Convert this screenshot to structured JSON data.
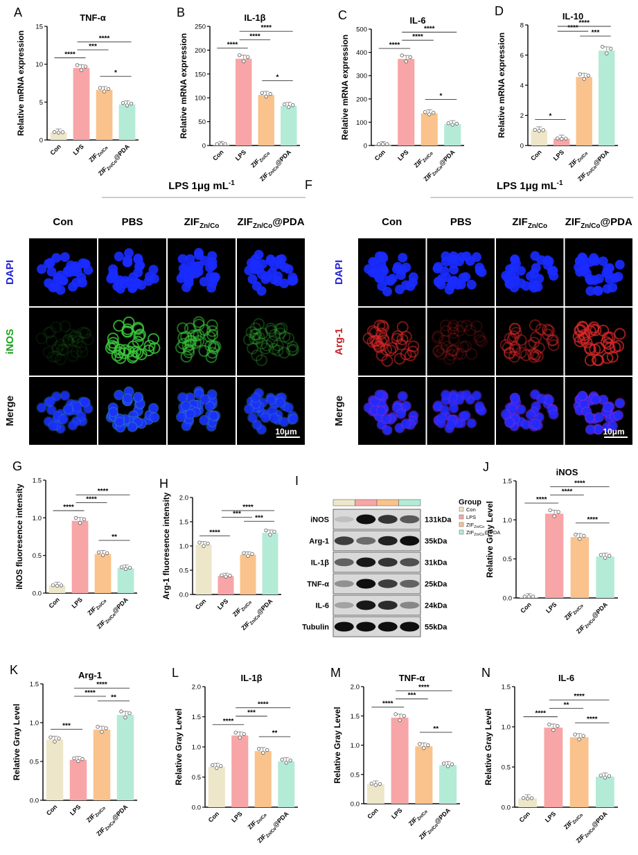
{
  "categories": [
    "Con",
    "LPS",
    "ZIF",
    "ZIF@PDA"
  ],
  "sub_label": "Zn/Co",
  "pda_suffix": "@PDA",
  "colors": {
    "con": "#EDE6C8",
    "lps": "#F7A5A6",
    "zif": "#FAC28C",
    "pda": "#B4EBD6"
  },
  "panels": {
    "A": {
      "letter": "A",
      "title": "TNF-α",
      "ylabel": "Relative mRNA expression",
      "ylim": [
        0,
        15
      ],
      "ticks": [
        0,
        5,
        10,
        15
      ]
    },
    "B": {
      "letter": "B",
      "title": "IL-1β",
      "ylabel": "Relative mRNA expression",
      "ylim": [
        0,
        250
      ],
      "ticks": [
        0,
        50,
        100,
        150,
        200,
        250
      ]
    },
    "C": {
      "letter": "C",
      "title": "IL-6",
      "ylabel": "Relative mRNA expression",
      "ylim": [
        0,
        500
      ],
      "ticks": [
        0,
        100,
        200,
        300,
        400,
        500
      ]
    },
    "D": {
      "letter": "D",
      "title": "IL-10",
      "ylabel": "Relative mRNA expression",
      "ylim": [
        0,
        8
      ],
      "ticks": [
        0,
        2,
        4,
        6,
        8
      ]
    },
    "G": {
      "letter": "G",
      "title": "",
      "ylabel": "iNOS fluoresence intensity",
      "ylim": [
        0,
        1.5
      ],
      "ticks": [
        "0.0",
        "0.5",
        "1.0",
        "1.5"
      ]
    },
    "H": {
      "letter": "H",
      "title": "",
      "ylabel": "Arg-1 fluoresence intensity",
      "ylim": [
        0,
        2.0
      ],
      "ticks": [
        "0.0",
        "0.5",
        "1.0",
        "1.5",
        "2.0"
      ]
    },
    "J": {
      "letter": "J",
      "title": "iNOS",
      "ylabel": "Relative Gray Level",
      "ylim": [
        0,
        1.5
      ],
      "ticks": [
        "0.0",
        "0.5",
        "1.0",
        "1.5"
      ]
    },
    "K": {
      "letter": "K",
      "title": "Arg-1",
      "ylabel": "Relative Gray Level",
      "ylim": [
        0,
        1.5
      ],
      "ticks": [
        "0.0",
        "0.5",
        "1.0",
        "1.5"
      ]
    },
    "L": {
      "letter": "L",
      "title": "IL-1β",
      "ylabel": "Relative Gray Level",
      "ylim": [
        0,
        2.0
      ],
      "ticks": [
        "0.0",
        "0.5",
        "1.0",
        "1.5",
        "2.0"
      ]
    },
    "M": {
      "letter": "M",
      "title": "TNF-α",
      "ylabel": "Relative Gray Level",
      "ylim": [
        0,
        2.0
      ],
      "ticks": [
        "0.0",
        "0.5",
        "1.0",
        "1.5",
        "2.0"
      ]
    },
    "N": {
      "letter": "N",
      "title": "IL-6",
      "ylabel": "Relative Gray Level",
      "ylim": [
        0,
        1.5
      ],
      "ticks": [
        "0.0",
        "0.5",
        "1.0",
        "1.5"
      ]
    }
  },
  "chart_data": [
    {
      "panel": "A",
      "type": "bar",
      "categories": [
        "Con",
        "LPS",
        "ZIF Zn/Co",
        "ZIF Zn/Co@PDA"
      ],
      "values": [
        1.0,
        9.5,
        6.6,
        4.7
      ],
      "ylim": [
        0,
        15
      ],
      "sig": [
        {
          "from": 0,
          "to": 1,
          "label": "****"
        },
        {
          "from": 1,
          "to": 2,
          "label": "***"
        },
        {
          "from": 1,
          "to": 3,
          "label": "****"
        },
        {
          "from": 2,
          "to": 3,
          "label": "*"
        }
      ]
    },
    {
      "panel": "B",
      "type": "bar",
      "categories": [
        "Con",
        "LPS",
        "ZIF Zn/Co",
        "ZIF Zn/Co@PDA"
      ],
      "values": [
        1,
        182,
        106,
        83
      ],
      "ylim": [
        0,
        250
      ],
      "sig": [
        {
          "from": 0,
          "to": 1,
          "label": "****"
        },
        {
          "from": 1,
          "to": 2,
          "label": "****"
        },
        {
          "from": 1,
          "to": 3,
          "label": "****"
        },
        {
          "from": 2,
          "to": 3,
          "label": "*"
        }
      ]
    },
    {
      "panel": "C",
      "type": "bar",
      "categories": [
        "Con",
        "LPS",
        "ZIF Zn/Co",
        "ZIF Zn/Co@PDA"
      ],
      "values": [
        1,
        372,
        138,
        92
      ],
      "ylim": [
        0,
        500
      ],
      "sig": [
        {
          "from": 0,
          "to": 1,
          "label": "****"
        },
        {
          "from": 1,
          "to": 2,
          "label": "****"
        },
        {
          "from": 1,
          "to": 3,
          "label": "****"
        },
        {
          "from": 2,
          "to": 3,
          "label": "*"
        }
      ]
    },
    {
      "panel": "D",
      "type": "bar",
      "categories": [
        "Con",
        "LPS",
        "ZIF Zn/Co",
        "ZIF Zn/Co@PDA"
      ],
      "values": [
        1.0,
        0.45,
        4.55,
        6.3
      ],
      "ylim": [
        0,
        8
      ],
      "sig": [
        {
          "from": 0,
          "to": 1,
          "label": "*"
        },
        {
          "from": 1,
          "to": 2,
          "label": "****"
        },
        {
          "from": 1,
          "to": 3,
          "label": "****"
        },
        {
          "from": 2,
          "to": 3,
          "label": "***"
        }
      ]
    },
    {
      "panel": "G",
      "type": "bar",
      "categories": [
        "Con",
        "LPS",
        "ZIF Zn/Co",
        "ZIF Zn/Co@PDA"
      ],
      "values": [
        0.1,
        0.96,
        0.52,
        0.33
      ],
      "ylim": [
        0,
        1.5
      ],
      "sig": [
        {
          "from": 0,
          "to": 1,
          "label": "****"
        },
        {
          "from": 1,
          "to": 2,
          "label": "****"
        },
        {
          "from": 1,
          "to": 3,
          "label": "****"
        },
        {
          "from": 2,
          "to": 3,
          "label": "**"
        }
      ]
    },
    {
      "panel": "H",
      "type": "bar",
      "categories": [
        "Con",
        "LPS",
        "ZIF Zn/Co",
        "ZIF Zn/Co@PDA"
      ],
      "values": [
        1.03,
        0.38,
        0.82,
        1.27
      ],
      "ylim": [
        0,
        2.0
      ],
      "sig": [
        {
          "from": 0,
          "to": 1,
          "label": "****"
        },
        {
          "from": 1,
          "to": 2,
          "label": "***"
        },
        {
          "from": 1,
          "to": 3,
          "label": "****"
        },
        {
          "from": 2,
          "to": 3,
          "label": "***"
        }
      ]
    },
    {
      "panel": "J",
      "type": "bar",
      "categories": [
        "Con",
        "LPS",
        "ZIF Zn/Co",
        "ZIF Zn/Co@PDA"
      ],
      "values": [
        0.01,
        1.08,
        0.78,
        0.53
      ],
      "ylim": [
        0,
        1.5
      ],
      "sig": [
        {
          "from": 0,
          "to": 1,
          "label": "****"
        },
        {
          "from": 1,
          "to": 2,
          "label": "****"
        },
        {
          "from": 1,
          "to": 3,
          "label": "****"
        },
        {
          "from": 2,
          "to": 3,
          "label": "****"
        }
      ]
    },
    {
      "panel": "K",
      "type": "bar",
      "categories": [
        "Con",
        "LPS",
        "ZIF Zn/Co",
        "ZIF Zn/Co@PDA"
      ],
      "values": [
        0.78,
        0.52,
        0.91,
        1.1
      ],
      "ylim": [
        0,
        1.5
      ],
      "sig": [
        {
          "from": 0,
          "to": 1,
          "label": "***"
        },
        {
          "from": 1,
          "to": 2,
          "label": "****"
        },
        {
          "from": 1,
          "to": 3,
          "label": "****"
        },
        {
          "from": 2,
          "to": 3,
          "label": "**"
        }
      ]
    },
    {
      "panel": "L",
      "type": "bar",
      "categories": [
        "Con",
        "LPS",
        "ZIF Zn/Co",
        "ZIF Zn/Co@PDA"
      ],
      "values": [
        0.67,
        1.19,
        0.93,
        0.76
      ],
      "ylim": [
        0,
        2.0
      ],
      "sig": [
        {
          "from": 0,
          "to": 1,
          "label": "****"
        },
        {
          "from": 1,
          "to": 2,
          "label": "***"
        },
        {
          "from": 1,
          "to": 3,
          "label": "****"
        },
        {
          "from": 2,
          "to": 3,
          "label": "**"
        }
      ]
    },
    {
      "panel": "M",
      "type": "bar",
      "categories": [
        "Con",
        "LPS",
        "ZIF Zn/Co",
        "ZIF Zn/Co@PDA"
      ],
      "values": [
        0.33,
        1.47,
        0.98,
        0.66
      ],
      "ylim": [
        0,
        2.0
      ],
      "sig": [
        {
          "from": 0,
          "to": 1,
          "label": "****"
        },
        {
          "from": 1,
          "to": 2,
          "label": "***"
        },
        {
          "from": 1,
          "to": 3,
          "label": "****"
        },
        {
          "from": 2,
          "to": 3,
          "label": "**"
        }
      ]
    },
    {
      "panel": "N",
      "type": "bar",
      "categories": [
        "Con",
        "LPS",
        "ZIF Zn/Co",
        "ZIF Zn/Co@PDA"
      ],
      "values": [
        0.11,
        0.99,
        0.87,
        0.38
      ],
      "ylim": [
        0,
        1.5
      ],
      "sig": [
        {
          "from": 0,
          "to": 1,
          "label": "****"
        },
        {
          "from": 1,
          "to": 2,
          "label": "**"
        },
        {
          "from": 1,
          "to": 3,
          "label": "****"
        },
        {
          "from": 2,
          "to": 3,
          "label": "****"
        }
      ]
    }
  ],
  "microscopy": {
    "E": {
      "letter": "E",
      "lps_header": "LPS 1μg mL",
      "lps_sup": "-1",
      "columns": [
        "Con",
        "PBS",
        "ZIF",
        "ZIF@PDA"
      ],
      "rows": [
        "DAPI",
        "iNOS",
        "Merge"
      ],
      "scale": "10μm",
      "row_colors": [
        "#2020d0",
        "#19a319",
        "#111111"
      ]
    },
    "F": {
      "letter": "F",
      "lps_header": "LPS 1μg mL",
      "lps_sup": "-1",
      "columns": [
        "Con",
        "PBS",
        "ZIF",
        "ZIF@PDA"
      ],
      "rows": [
        "DAPI",
        "Arg-1",
        "Merge"
      ],
      "scale": "10μm",
      "row_colors": [
        "#2020d0",
        "#c8202a",
        "#111111"
      ]
    }
  },
  "western": {
    "letter": "I",
    "legend_title": "Group",
    "legend": [
      "Con",
      "LPS",
      "ZIF",
      "ZIF@PDA"
    ],
    "bands": [
      {
        "name": "iNOS",
        "kda": "131kDa",
        "levels": [
          0.05,
          1.0,
          0.8,
          0.6
        ]
      },
      {
        "name": "Arg-1",
        "kda": "35kDa",
        "levels": [
          0.75,
          0.5,
          0.9,
          1.0
        ]
      },
      {
        "name": "IL-1β",
        "kda": "31kDa",
        "levels": [
          0.55,
          0.95,
          0.8,
          0.65
        ]
      },
      {
        "name": "TNF-α",
        "kda": "25kDa",
        "levels": [
          0.3,
          1.0,
          0.75,
          0.55
        ]
      },
      {
        "name": "IL-6",
        "kda": "24kDa",
        "levels": [
          0.2,
          0.95,
          0.85,
          0.35
        ]
      },
      {
        "name": "Tubulin",
        "kda": "55kDa",
        "levels": [
          1.0,
          1.0,
          1.0,
          1.0
        ]
      }
    ]
  }
}
